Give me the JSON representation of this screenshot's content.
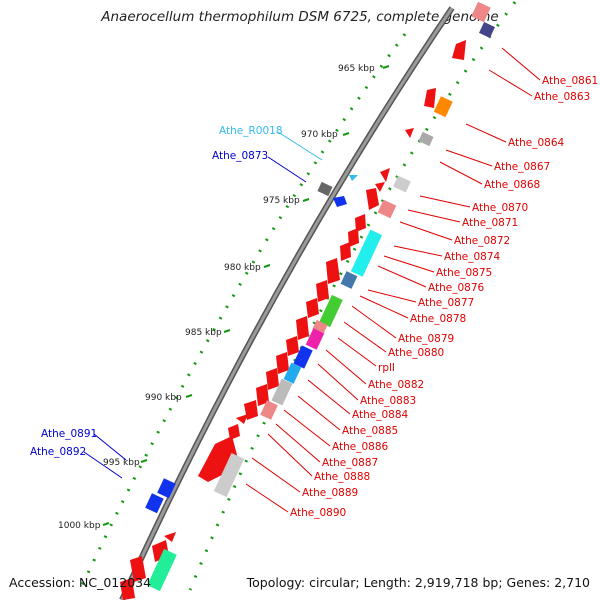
{
  "title": "Anaerocellum thermophilum DSM 6725, complete genome",
  "accession": "Accession: NC_012034",
  "topology": "Topology: circular; Length: 2,919,718 bp; Genes: 2,710",
  "colors": {
    "label_red": "#e00000",
    "label_blue": "#0000cc",
    "label_cyan": "#33bbee",
    "tick_green": "#119911",
    "backbone": "#888888",
    "gene_red": "#ee1111",
    "gene_blue": "#1133ee",
    "gene_cyan": "#22eeee",
    "gene_orange": "#ff8800",
    "gene_green": "#44cc33",
    "gene_magenta": "#ee22aa",
    "gene_pink": "#ee8888",
    "gene_gray": "#aaaaaa",
    "gene_dark": "#666666",
    "gene_navy": "#444488",
    "gene_mint": "#22ee99",
    "gene_steel": "#4477aa"
  },
  "kbp_labels": [
    "965 kbp",
    "970 kbp",
    "975 kbp",
    "980 kbp",
    "985 kbp",
    "990 kbp",
    "995 kbp",
    "1000 kbp"
  ],
  "right_labels": [
    "Athe_0861",
    "Athe_0863",
    "Athe_0864",
    "Athe_0867",
    "Athe_0868",
    "Athe_0870",
    "Athe_0871",
    "Athe_0872",
    "Athe_0874",
    "Athe_0875",
    "Athe_0876",
    "Athe_0877",
    "Athe_0878",
    "Athe_0879",
    "Athe_0880",
    "rplI",
    "Athe_0882",
    "Athe_0883",
    "Athe_0884",
    "Athe_0885",
    "Athe_0886",
    "Athe_0887",
    "Athe_0888",
    "Athe_0889",
    "Athe_0890"
  ],
  "left_labels": [
    "Athe_R0018",
    "Athe_0873",
    "Athe_0891",
    "Athe_0892"
  ]
}
